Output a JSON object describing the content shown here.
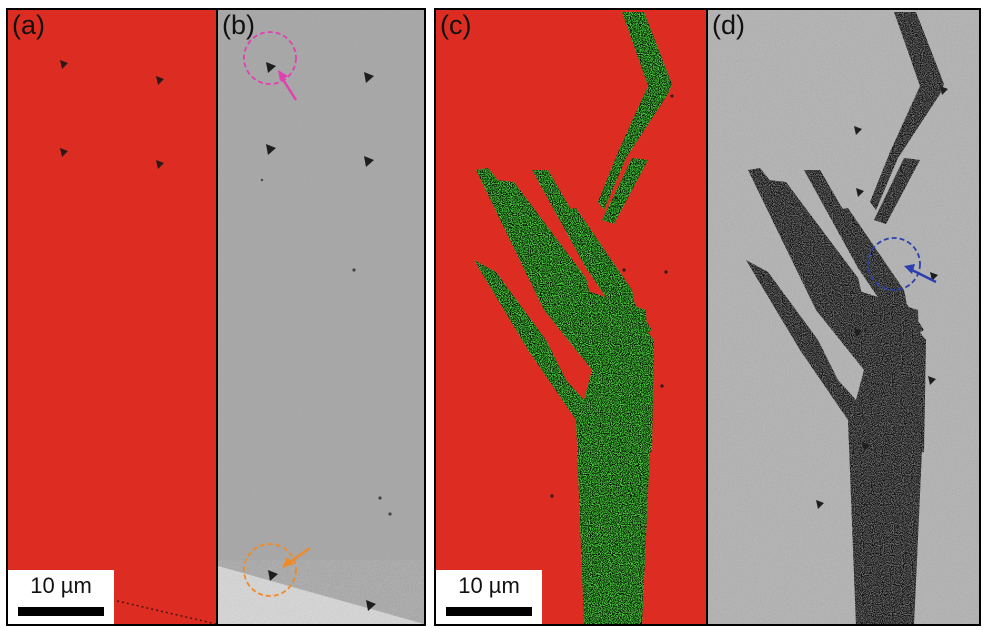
{
  "figure": {
    "panel_labels": {
      "a": "(a)",
      "b": "(b)",
      "c": "(c)",
      "d": "(d)"
    },
    "scale_bars": {
      "left": "10 µm",
      "right": "10 µm"
    },
    "colors": {
      "matrix_red": "#dd2d22",
      "phase_green": "#47cc3a",
      "sem_gray": "#a6a6a6",
      "circle_magenta": "#e040b0",
      "circle_orange": "#f08a28",
      "circle_blue": "#2b3fb0"
    }
  }
}
